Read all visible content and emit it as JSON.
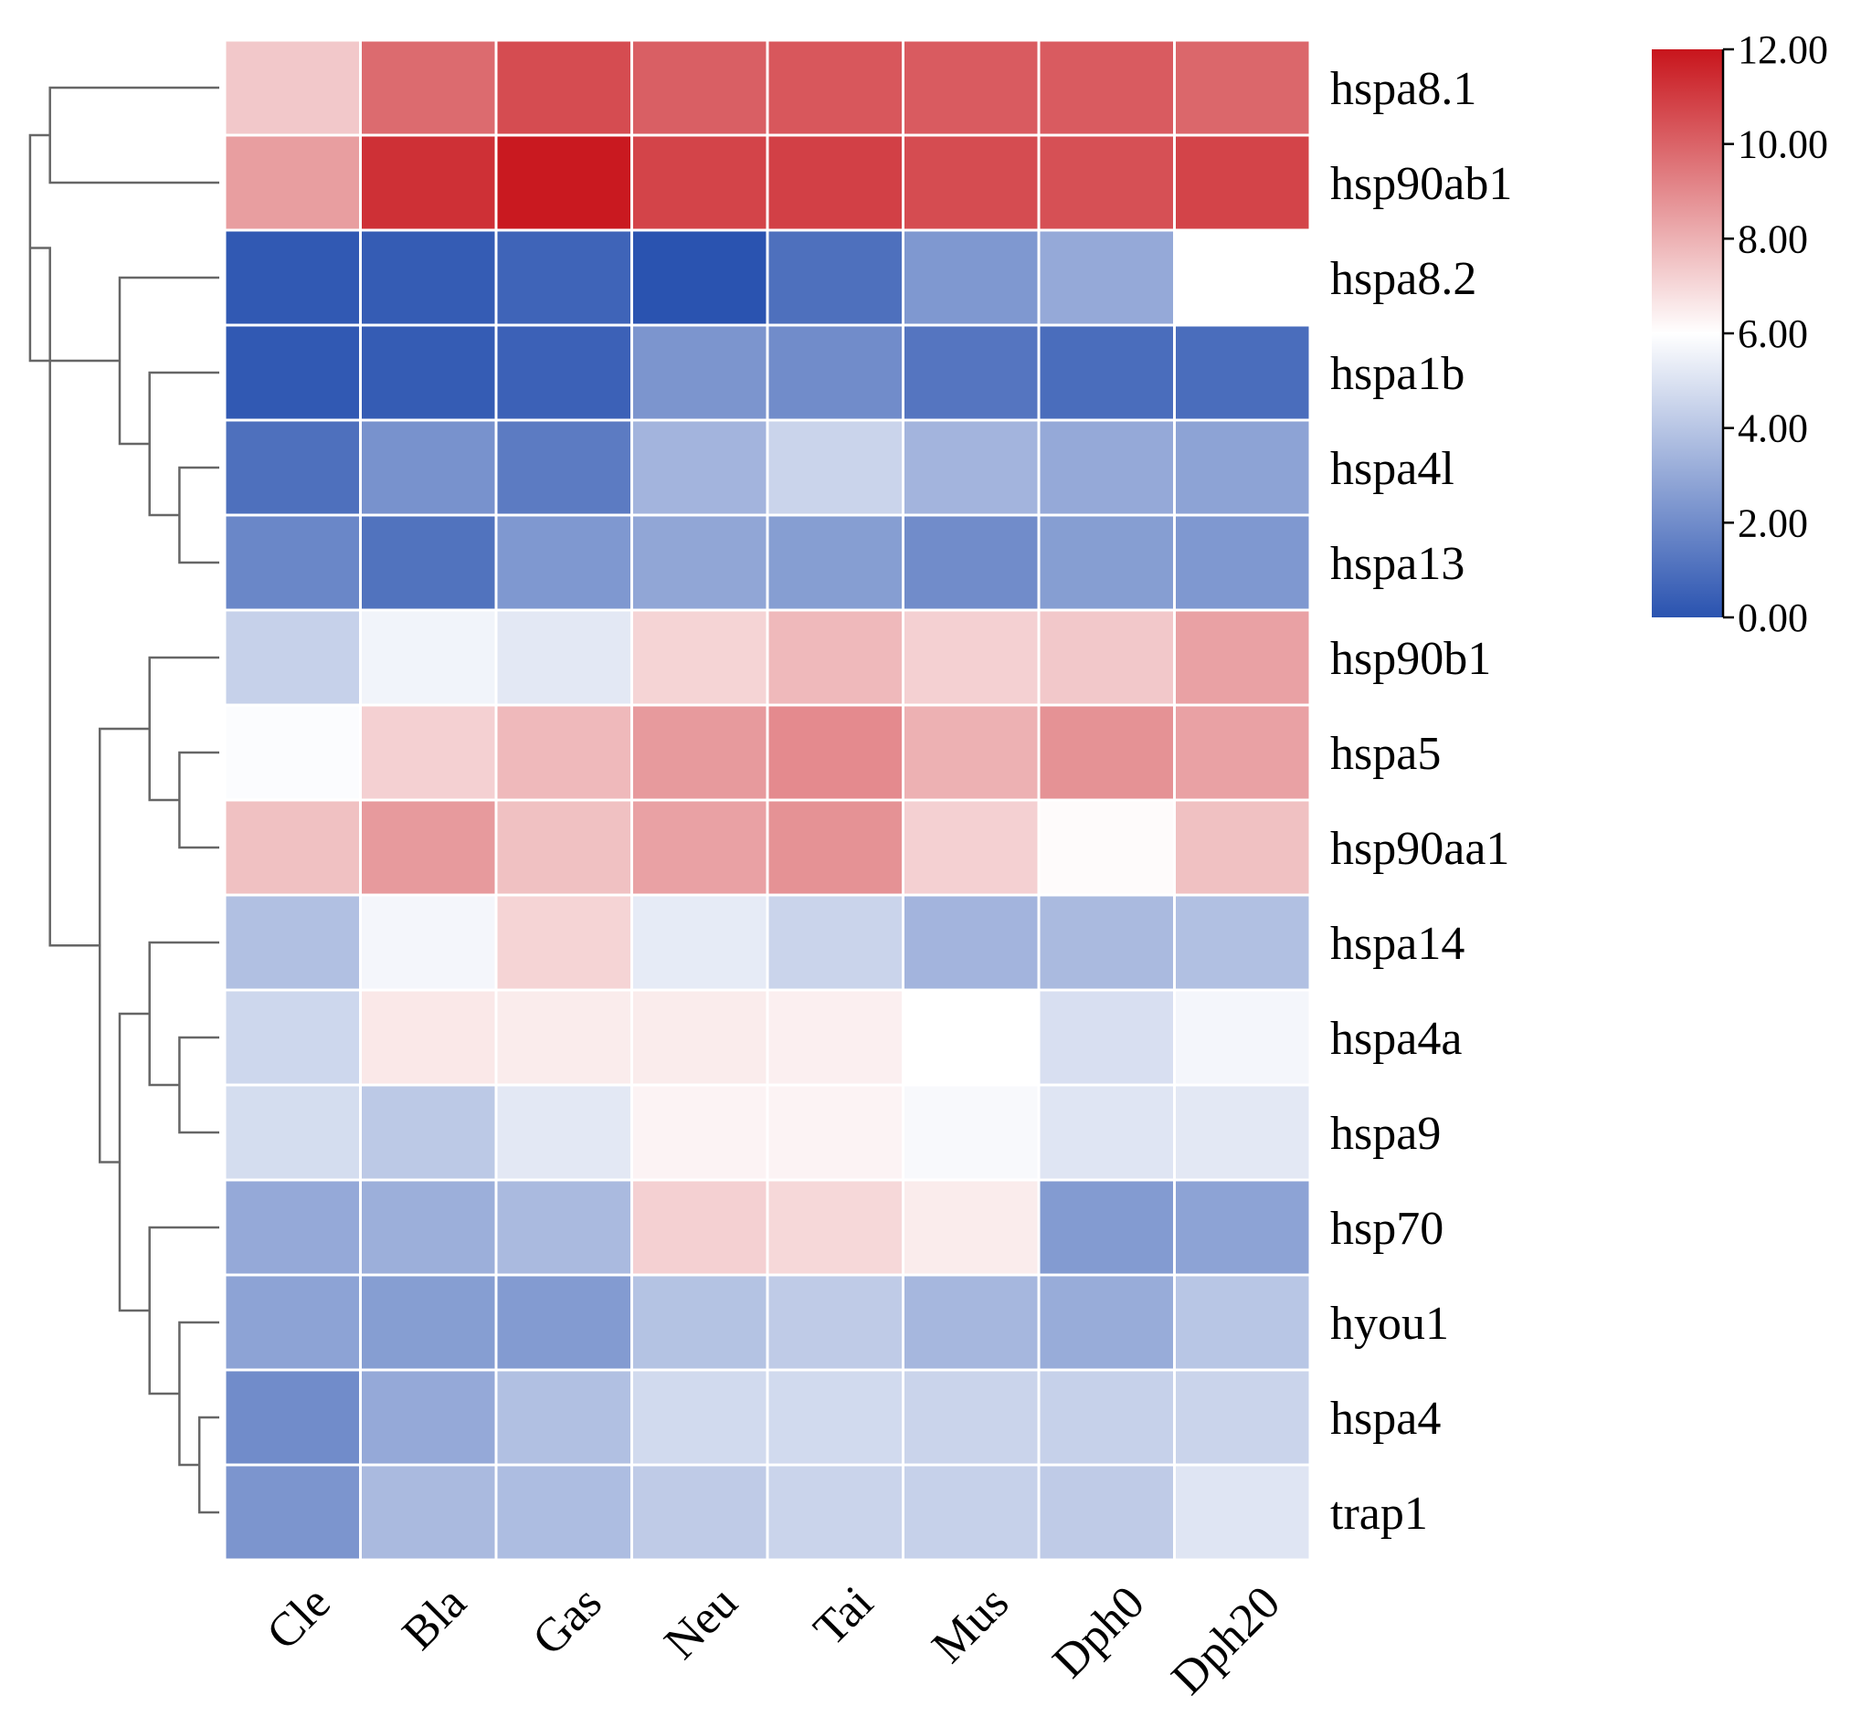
{
  "chart_data": {
    "type": "heatmap",
    "title": "",
    "columns": [
      "Cle",
      "Bla",
      "Gas",
      "Neu",
      "Tai",
      "Mus",
      "Dph0",
      "Dph20"
    ],
    "rows": [
      "hspa8.1",
      "hsp90ab1",
      "hspa8.2",
      "hspa1b",
      "hspa4l",
      "hspa13",
      "hsp90b1",
      "hspa5",
      "hsp90aa1",
      "hspa14",
      "hspa4a",
      "hspa9",
      "hsp70",
      "hyou1",
      "hspa4",
      "trap1"
    ],
    "values": [
      [
        7.4,
        9.8,
        10.6,
        10.1,
        10.3,
        10.2,
        10.2,
        9.9
      ],
      [
        8.5,
        11.3,
        11.9,
        10.8,
        10.9,
        10.6,
        10.5,
        10.8
      ],
      [
        0.2,
        0.3,
        0.6,
        0.0,
        1.0,
        2.4,
        3.0,
        6.0
      ],
      [
        0.2,
        0.3,
        0.5,
        2.3,
        2.0,
        1.2,
        0.9,
        0.9
      ],
      [
        1.0,
        2.2,
        1.4,
        3.4,
        4.5,
        3.4,
        3.0,
        2.8
      ],
      [
        1.8,
        1.1,
        2.4,
        2.9,
        2.6,
        2.0,
        2.6,
        2.4
      ],
      [
        4.4,
        5.6,
        5.2,
        7.1,
        7.8,
        7.2,
        7.4,
        8.4
      ],
      [
        5.9,
        7.2,
        7.8,
        8.6,
        9.0,
        8.0,
        8.8,
        8.4
      ],
      [
        7.6,
        8.6,
        7.6,
        8.4,
        8.8,
        7.2,
        6.1,
        7.6
      ],
      [
        3.8,
        5.7,
        7.1,
        5.3,
        4.5,
        3.4,
        3.6,
        3.8
      ],
      [
        4.6,
        6.6,
        6.5,
        6.5,
        6.4,
        6.0,
        4.9,
        5.7
      ],
      [
        4.8,
        4.1,
        5.2,
        6.3,
        6.3,
        5.8,
        5.1,
        5.2
      ],
      [
        3.0,
        3.2,
        3.6,
        7.2,
        7.0,
        6.5,
        2.5,
        2.8
      ],
      [
        2.8,
        2.6,
        2.5,
        3.9,
        4.2,
        3.5,
        3.1,
        4.0
      ],
      [
        2.0,
        3.0,
        3.8,
        4.7,
        4.7,
        4.5,
        4.4,
        4.5
      ],
      [
        2.3,
        3.6,
        3.7,
        4.2,
        4.5,
        4.4,
        4.2,
        5.1
      ]
    ],
    "color_scale": {
      "min": 0,
      "mid": 6,
      "max": 12,
      "low_color": "#2a53b0",
      "mid_color": "#ffffff",
      "high_color": "#c8151c"
    },
    "colorbar_ticks": [
      "0.00",
      "2.00",
      "4.00",
      "6.00",
      "8.00",
      "10.00",
      "12.00"
    ],
    "colorbar_tick_values": [
      0,
      2,
      4,
      6,
      8,
      10,
      12
    ],
    "row_dendrogram": [
      {
        "join": [
          0,
          1
        ],
        "height": 0.85
      },
      {
        "join": [
          4,
          5
        ],
        "height": 0.2
      },
      {
        "join": [
          3,
          "c1"
        ],
        "height": 0.35
      },
      {
        "join": [
          2,
          "c2"
        ],
        "height": 0.5
      },
      {
        "join": [
          "c0",
          "c3"
        ],
        "height": 0.95
      },
      {
        "join": [
          7,
          8
        ],
        "height": 0.2
      },
      {
        "join": [
          6,
          "c5"
        ],
        "height": 0.35
      },
      {
        "join": [
          10,
          11
        ],
        "height": 0.2
      },
      {
        "join": [
          9,
          "c7"
        ],
        "height": 0.35
      },
      {
        "join": [
          14,
          15
        ],
        "height": 0.1
      },
      {
        "join": [
          13,
          "c9"
        ],
        "height": 0.2
      },
      {
        "join": [
          12,
          "c10"
        ],
        "height": 0.35
      },
      {
        "join": [
          "c8",
          "c11"
        ],
        "height": 0.5
      },
      {
        "join": [
          "c6",
          "c12"
        ],
        "height": 0.6
      },
      {
        "join": [
          "c4",
          "c13"
        ],
        "height": 0.85
      }
    ]
  }
}
